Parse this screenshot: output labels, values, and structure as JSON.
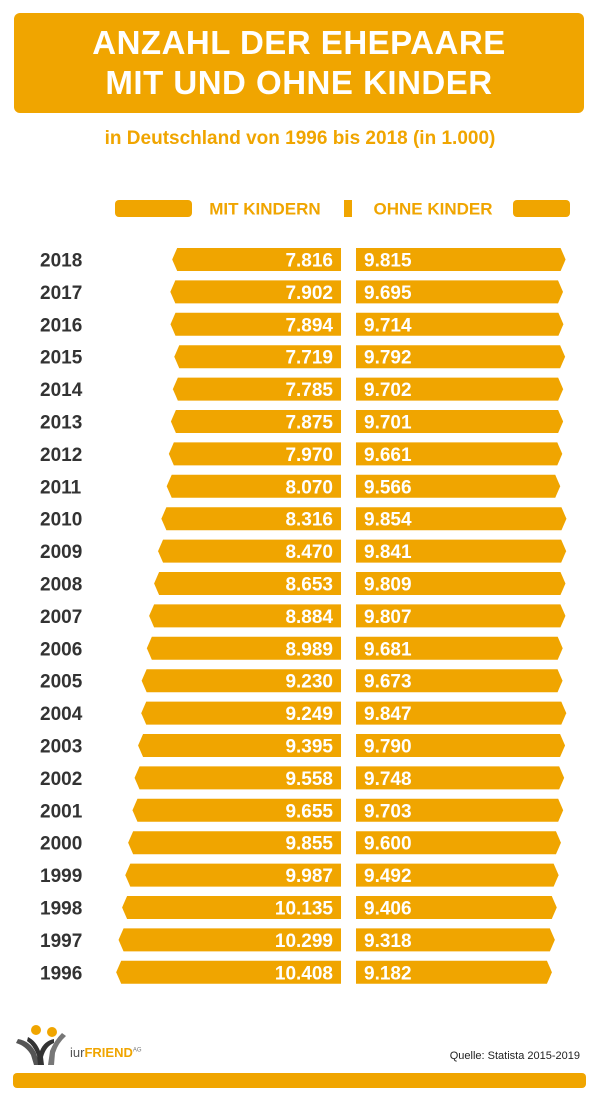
{
  "header": {
    "title_line1": "ANZAHL DER EHEPAARE",
    "title_line2": "MIT UND OHNE KINDER",
    "subtitle": "in Deutschland von 1996 bis 2018 (in 1.000)"
  },
  "colors": {
    "accent": "#f0a500",
    "text_dark": "#333333",
    "white": "#ffffff"
  },
  "chart_data": {
    "type": "bar",
    "categories": [
      "2018",
      "2017",
      "2016",
      "2015",
      "2014",
      "2013",
      "2012",
      "2011",
      "2010",
      "2009",
      "2008",
      "2007",
      "2006",
      "2005",
      "2004",
      "2003",
      "2002",
      "2001",
      "2000",
      "1999",
      "1998",
      "1997",
      "1996"
    ],
    "series": [
      {
        "name": "MIT KINDERN",
        "values": [
          7816,
          7902,
          7894,
          7719,
          7785,
          7875,
          7970,
          8070,
          8316,
          8470,
          8653,
          8884,
          8989,
          9230,
          9249,
          9395,
          9558,
          9655,
          9855,
          9987,
          10135,
          10299,
          10408
        ],
        "labels": [
          "7.816",
          "7.902",
          "7.894",
          "7.719",
          "7.785",
          "7.875",
          "7.970",
          "8.070",
          "8.316",
          "8.470",
          "8.653",
          "8.884",
          "8.989",
          "9.230",
          "9.249",
          "9.395",
          "9.558",
          "9.655",
          "9.855",
          "9.987",
          "10.135",
          "10.299",
          "10.408"
        ]
      },
      {
        "name": "OHNE KINDER",
        "values": [
          9815,
          9695,
          9714,
          9792,
          9702,
          9701,
          9661,
          9566,
          9854,
          9841,
          9809,
          9807,
          9681,
          9673,
          9847,
          9790,
          9748,
          9703,
          9600,
          9492,
          9406,
          9318,
          9182
        ],
        "labels": [
          "9.815",
          "9.695",
          "9.714",
          "9.792",
          "9.702",
          "9.701",
          "9.661",
          "9.566",
          "9.854",
          "9.841",
          "9.809",
          "9.807",
          "9.681",
          "9.673",
          "9.847",
          "9.790",
          "9.748",
          "9.703",
          "9.600",
          "9.492",
          "9.406",
          "9.318",
          "9.182"
        ]
      }
    ],
    "title": "ANZAHL DER EHEPAARE MIT UND OHNE KINDER",
    "legend_placement": "top-center"
  },
  "logo": {
    "prefix": "iur",
    "brand": "FRIEND",
    "suffix": "AG"
  },
  "footer": {
    "source": "Quelle: Statista 2015-2019"
  }
}
